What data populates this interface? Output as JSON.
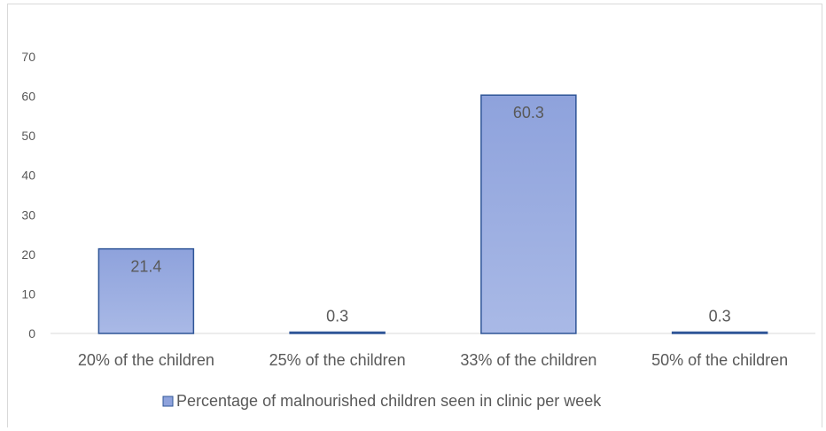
{
  "chart_data": {
    "type": "bar",
    "categories": [
      "20% of the children",
      "25% of the children",
      "33% of the children",
      "50% of the children"
    ],
    "series": [
      {
        "name": "Percentage of malnourished children seen in clinic per week",
        "values": [
          21.4,
          0.3,
          60.3,
          0.3
        ]
      }
    ],
    "data_labels": [
      "21.4",
      "0.3",
      "60.3",
      "0.3"
    ],
    "yticks": [
      "0",
      "10",
      "20",
      "30",
      "40",
      "50",
      "60",
      "70"
    ],
    "ylim": [
      0,
      70
    ],
    "xlabel": "",
    "ylabel": "",
    "grid": false,
    "legend_position": "bottom",
    "colors": {
      "bar_fill_top": "#8ea2dc",
      "bar_fill_bottom": "#a9b9e6",
      "bar_stroke": "#2f5597",
      "axis": "#d9d9d9",
      "text": "#595959"
    }
  }
}
